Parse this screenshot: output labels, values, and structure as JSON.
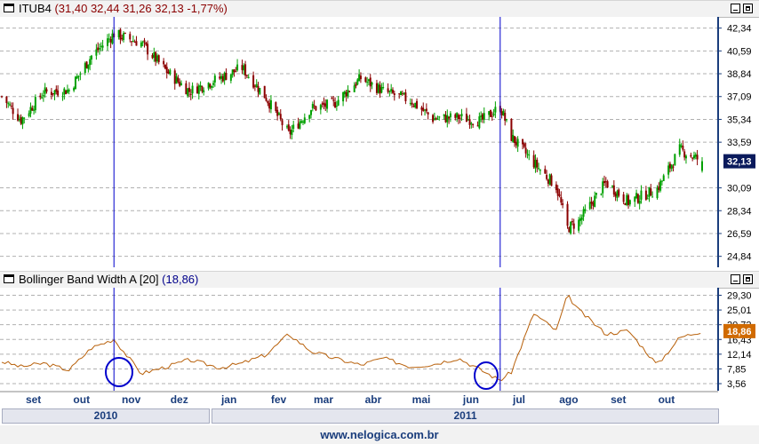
{
  "colors": {
    "up": "#00a000",
    "down": "#8b0000",
    "bbw_line": "#b8600a",
    "grid": "#b0b0b0",
    "axis": "#1a3d7c",
    "price_badge": "#0a1a5c",
    "bbw_badge": "#d06a00",
    "marker": "#0000cc"
  },
  "price_panel": {
    "name": "ITUB4",
    "quote": "(31,40  32,44  31,26  32,13  -1,77%)",
    "y_ticks": [
      "42,34",
      "40,59",
      "38,84",
      "37,09",
      "35,34",
      "33,59",
      "32,13",
      "30,09",
      "28,34",
      "26,59",
      "24,84"
    ],
    "current_price": "32,13"
  },
  "indicator_panel": {
    "name": "Bollinger Band Width A [20]",
    "value": "(18,86)",
    "y_ticks": [
      "29,30",
      "25,01",
      "20,72",
      "16,43",
      "12,14",
      "7,85",
      "3,56"
    ],
    "current_value": "18,86"
  },
  "x_axis": {
    "months": [
      "set",
      "out",
      "nov",
      "dez",
      "jan",
      "fev",
      "mar",
      "abr",
      "mai",
      "jun",
      "jul",
      "ago",
      "set",
      "out"
    ],
    "years": [
      "2010",
      "2011"
    ]
  },
  "footer": "www.nelogica.com.br",
  "chart_data": [
    {
      "type": "candlestick",
      "title": "ITUB4",
      "ylim": [
        24.0,
        43.2
      ],
      "x": [
        "2010-08-20",
        "2010-09-01",
        "2010-09-15",
        "2010-10-01",
        "2010-10-15",
        "2010-10-29",
        "2010-11-15",
        "2010-12-01",
        "2010-12-15",
        "2011-01-03",
        "2011-01-17",
        "2011-02-01",
        "2011-02-15",
        "2011-03-01",
        "2011-03-15",
        "2011-04-01",
        "2011-04-15",
        "2011-05-02",
        "2011-05-16",
        "2011-06-01",
        "2011-06-15",
        "2011-06-27",
        "2011-07-04",
        "2011-07-18",
        "2011-08-01",
        "2011-08-08",
        "2011-08-15",
        "2011-09-01",
        "2011-09-15",
        "2011-10-03",
        "2011-10-17",
        "2011-10-31"
      ],
      "series": [
        {
          "values": [
            37.1,
            35.3,
            37.4,
            37.6,
            40.2,
            41.9,
            41.2,
            39.0,
            37.5,
            38.5,
            39.3,
            37.0,
            34.2,
            36.2,
            36.5,
            38.5,
            37.5,
            36.8,
            35.4,
            35.5,
            35.2,
            36.3,
            34.0,
            32.0,
            30.2,
            27.0,
            27.5,
            30.5,
            29.0,
            30.0,
            33.0,
            32.13
          ]
        }
      ]
    },
    {
      "type": "line",
      "title": "Bollinger Band Width A [20]",
      "ylim": [
        1.5,
        31.5
      ],
      "x": [
        "2010-08-20",
        "2010-09-01",
        "2010-09-15",
        "2010-10-01",
        "2010-10-15",
        "2010-10-29",
        "2010-11-15",
        "2010-12-01",
        "2010-12-15",
        "2011-01-03",
        "2011-01-17",
        "2011-02-01",
        "2011-02-15",
        "2011-03-01",
        "2011-03-15",
        "2011-04-01",
        "2011-04-15",
        "2011-05-02",
        "2011-05-16",
        "2011-06-01",
        "2011-06-15",
        "2011-06-27",
        "2011-07-04",
        "2011-07-18",
        "2011-08-01",
        "2011-08-08",
        "2011-08-15",
        "2011-09-01",
        "2011-09-15",
        "2011-10-03",
        "2011-10-17",
        "2011-10-31"
      ],
      "series": [
        {
          "values": [
            10.0,
            8.5,
            9.5,
            7.5,
            14.0,
            16.5,
            6.5,
            8.5,
            10.5,
            8.2,
            9.5,
            12.0,
            18.0,
            13.0,
            11.0,
            9.0,
            11.0,
            8.5,
            9.2,
            11.0,
            7.5,
            4.5,
            7.0,
            24.0,
            19.0,
            29.3,
            25.0,
            18.0,
            19.0,
            9.0,
            17.0,
            18.86
          ]
        }
      ]
    }
  ]
}
